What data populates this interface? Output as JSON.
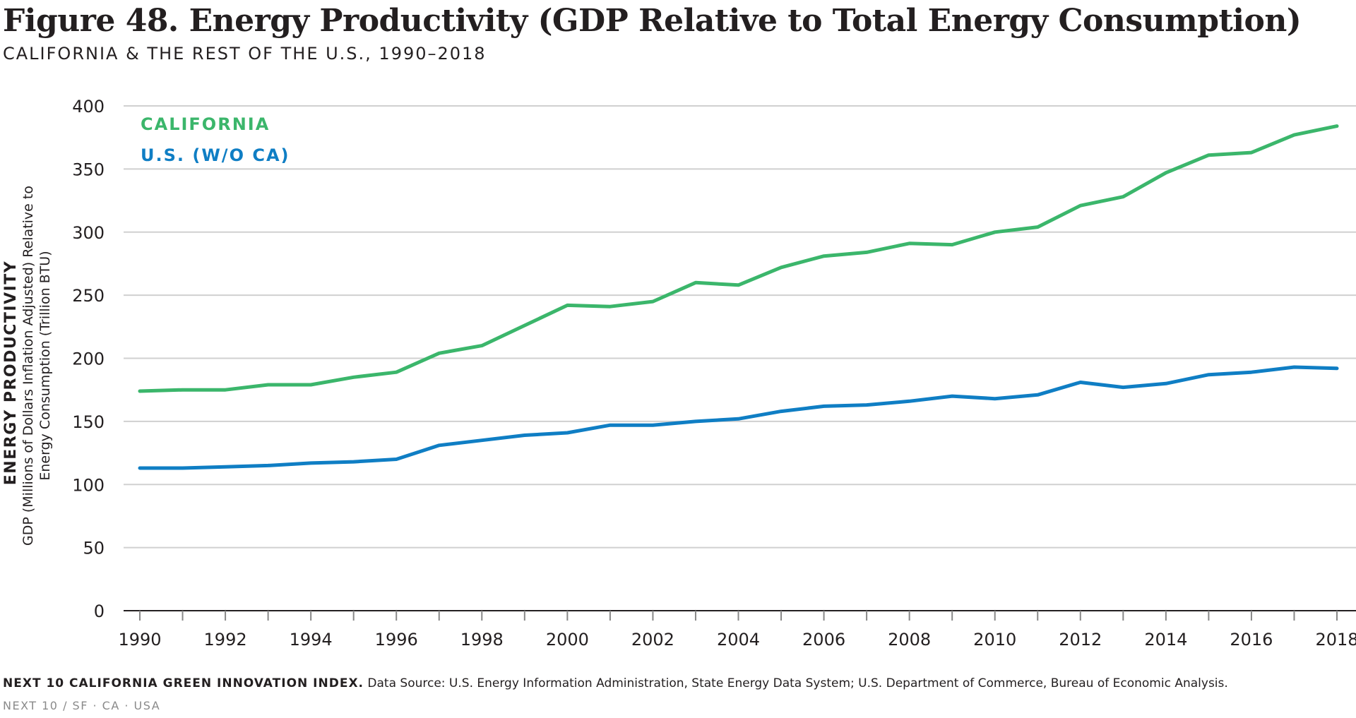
{
  "header": {
    "title": "Figure 48. Energy Productivity (GDP Relative to Total Energy Consumption)",
    "subtitle": "CALIFORNIA & THE REST OF THE U.S., 1990–2018"
  },
  "footer": {
    "source_bold": "NEXT 10 CALIFORNIA GREEN INNOVATION INDEX.",
    "source_text": " Data Source: U.S. Energy Information Administration, State Energy Data System; U.S. Department of Commerce, Bureau of Economic Analysis.",
    "imprint": "NEXT 10  /  SF · CA · USA"
  },
  "colors": {
    "california": "#3bb66b",
    "us": "#0f7ec4",
    "grid": "#d0d0d0",
    "axis": "#231f20"
  },
  "chart_data": {
    "type": "line",
    "title": "Figure 48. Energy Productivity (GDP Relative to Total Energy Consumption)",
    "subtitle": "CALIFORNIA & THE REST OF THE U.S., 1990–2018",
    "ylabel": "ENERGY PRODUCTIVITY",
    "ylabel_sub": [
      "GDP (Millions of Dollars Inflation Adjusted) Relative to",
      "Energy Consumption (Trillion BTU)"
    ],
    "xlabel": "",
    "x": [
      1990,
      1991,
      1992,
      1993,
      1994,
      1995,
      1996,
      1997,
      1998,
      1999,
      2000,
      2001,
      2002,
      2003,
      2004,
      2005,
      2006,
      2007,
      2008,
      2009,
      2010,
      2011,
      2012,
      2013,
      2014,
      2015,
      2016,
      2017,
      2018
    ],
    "xticks": [
      "1990",
      "1992",
      "1994",
      "1996",
      "1998",
      "2000",
      "2002",
      "2004",
      "2006",
      "2008",
      "2010",
      "2012",
      "2014",
      "2016",
      "2018"
    ],
    "yticks": [
      "0",
      "50",
      "100",
      "150",
      "200",
      "250",
      "300",
      "350",
      "400"
    ],
    "ylim": [
      0,
      400
    ],
    "grid": "horizontal",
    "legend_position": "top-left",
    "series": [
      {
        "name": "CALIFORNIA",
        "color": "#3bb66b",
        "values": [
          174,
          175,
          175,
          179,
          179,
          185,
          189,
          204,
          210,
          226,
          242,
          241,
          245,
          260,
          258,
          272,
          281,
          284,
          291,
          290,
          300,
          304,
          321,
          328,
          347,
          361,
          363,
          377,
          384
        ]
      },
      {
        "name": "U.S. (W/O CA)",
        "color": "#0f7ec4",
        "values": [
          113,
          113,
          114,
          115,
          117,
          118,
          120,
          131,
          135,
          139,
          141,
          147,
          147,
          150,
          152,
          158,
          162,
          163,
          166,
          170,
          168,
          171,
          181,
          177,
          180,
          187,
          189,
          193,
          192
        ]
      }
    ]
  }
}
